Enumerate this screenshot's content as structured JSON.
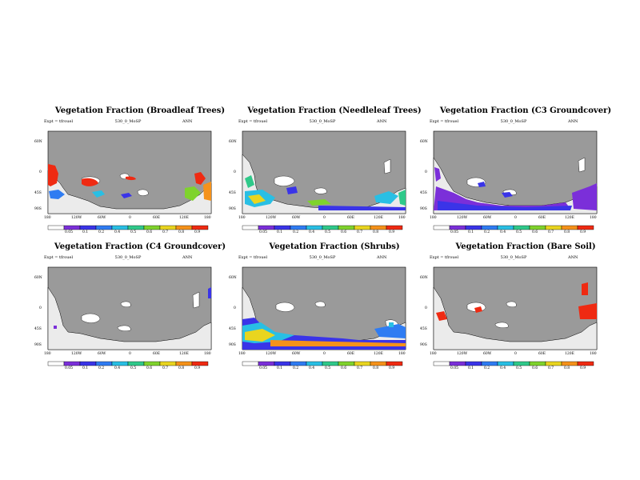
{
  "experiment_label": "Expt = tfrouel",
  "run_id": "530_0_MoSP",
  "period": "ANN",
  "lat_labels": [
    "60N",
    "0",
    "45S",
    "90S"
  ],
  "lon_labels": [
    "180",
    "120W",
    "60W",
    "0",
    "60E",
    "120E",
    "180"
  ],
  "colorbar_labels": [
    "0.05",
    "0.1",
    "0.2",
    "0.4",
    "0.5",
    "0.6",
    "0.7",
    "0.8",
    "0.9"
  ],
  "colorbar_colors": [
    "#ffffff",
    "#7b2fd9",
    "#3a34e8",
    "#2f7cf2",
    "#29bfe4",
    "#2fc98a",
    "#7fd32c",
    "#e9d51f",
    "#f5921a",
    "#ef2a12"
  ],
  "land_color": "#9a9a9a",
  "white_region_color": "#ebebeb",
  "panels": [
    {
      "title": "Vegetation Fraction (Broadleaf Trees)"
    },
    {
      "title": "Vegetation Fraction (Needleleaf Trees)"
    },
    {
      "title": "Vegetation Fraction (C3 Groundcover)"
    },
    {
      "title": "Vegetation Fraction (C4 Groundcover)"
    },
    {
      "title": "Vegetation Fraction (Shrubs)"
    },
    {
      "title": "Vegetation Fraction (Bare Soil)"
    }
  ]
}
